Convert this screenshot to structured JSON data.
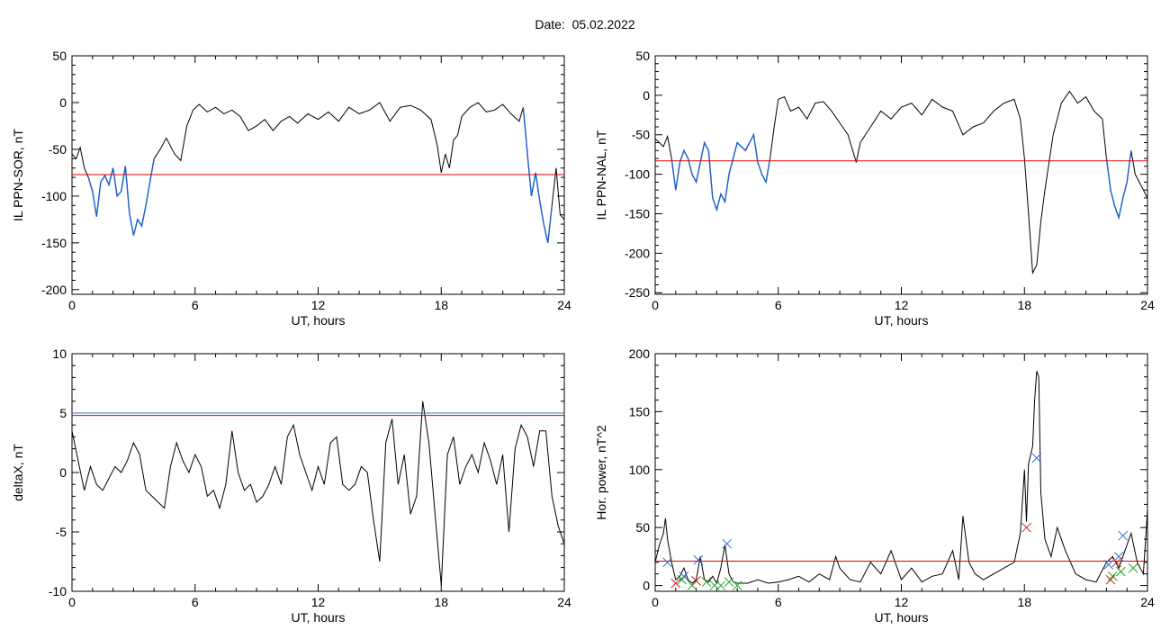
{
  "page": {
    "title": "Date:  05.02.2022"
  },
  "colors": {
    "trace": "#000000",
    "threshold": "#e00000",
    "highlight": "#1a5fcf",
    "blue_line": "#3b6fd8",
    "marker_blue": "#2f6fcf",
    "marker_red": "#e02020",
    "marker_green": "#20a020"
  },
  "chart_data": [
    {
      "id": "sor",
      "type": "line",
      "xlabel": "UT, hours",
      "ylabel": "IL PPN-SOR, nT",
      "xlim": [
        0,
        24
      ],
      "ylim": [
        -205,
        50
      ],
      "xticks": [
        "0",
        "6",
        "12",
        "18",
        "24"
      ],
      "yticks": [
        "50",
        "0",
        "-50",
        "-100",
        "-150",
        "-200"
      ],
      "threshold": -77,
      "series": [
        {
          "x": [
            0,
            0.2,
            0.4,
            0.6,
            0.8,
            1.0,
            1.2,
            1.4,
            1.6,
            1.8,
            2.0,
            2.2,
            2.4,
            2.6,
            2.8,
            3.0,
            3.2,
            3.4,
            3.6,
            3.8,
            4.0,
            4.3,
            4.6,
            5.0,
            5.3,
            5.6,
            5.9,
            6.2,
            6.6,
            7.0,
            7.4,
            7.8,
            8.2,
            8.6,
            9.0,
            9.4,
            9.8,
            10.2,
            10.6,
            11.0,
            11.5,
            12.0,
            12.5,
            13.0,
            13.5,
            14.0,
            14.5,
            15.0,
            15.5,
            16.0,
            16.5,
            17.0,
            17.5,
            17.8,
            18.0,
            18.2,
            18.4,
            18.6,
            18.8,
            19.0,
            19.4,
            19.8,
            20.2,
            20.6,
            21.0,
            21.4,
            21.8,
            22.0,
            22.2,
            22.4,
            22.6,
            22.8,
            23.0,
            23.2,
            23.4,
            23.6,
            23.8,
            24.0
          ],
          "y": [
            -55,
            -60,
            -48,
            -70,
            -80,
            -95,
            -122,
            -85,
            -78,
            -88,
            -70,
            -100,
            -95,
            -68,
            -118,
            -142,
            -125,
            -132,
            -110,
            -85,
            -60,
            -50,
            -38,
            -55,
            -62,
            -25,
            -8,
            -2,
            -10,
            -5,
            -12,
            -8,
            -15,
            -30,
            -25,
            -18,
            -30,
            -20,
            -15,
            -22,
            -12,
            -18,
            -10,
            -20,
            -5,
            -12,
            -8,
            0,
            -20,
            -5,
            -3,
            -8,
            -18,
            -45,
            -75,
            -55,
            -70,
            -40,
            -35,
            -15,
            -5,
            0,
            -10,
            -8,
            -2,
            -12,
            -20,
            -5,
            -55,
            -100,
            -75,
            -105,
            -130,
            -150,
            -110,
            -70,
            -120,
            -125
          ]
        }
      ],
      "highlight_ranges": [
        [
          0.8,
          4.0
        ],
        [
          21.9,
          23.4
        ]
      ]
    },
    {
      "id": "nal",
      "type": "line",
      "xlabel": "UT, hours",
      "ylabel": "IL PPN-NAL, nT",
      "xlim": [
        0,
        24
      ],
      "ylim": [
        -252,
        50
      ],
      "xticks": [
        "0",
        "6",
        "12",
        "18",
        "24"
      ],
      "yticks": [
        "50",
        "0",
        "-50",
        "-100",
        "-150",
        "-200",
        "-250"
      ],
      "threshold": -83,
      "series": [
        {
          "x": [
            0,
            0.2,
            0.4,
            0.6,
            0.8,
            1.0,
            1.2,
            1.4,
            1.6,
            1.8,
            2.0,
            2.2,
            2.4,
            2.6,
            2.8,
            3.0,
            3.2,
            3.4,
            3.6,
            3.8,
            4.0,
            4.4,
            4.8,
            5.0,
            5.2,
            5.4,
            5.6,
            5.8,
            6.0,
            6.3,
            6.6,
            7.0,
            7.4,
            7.8,
            8.2,
            8.6,
            9.0,
            9.4,
            9.8,
            10.0,
            10.5,
            11.0,
            11.5,
            12.0,
            12.5,
            13.0,
            13.5,
            14.0,
            14.5,
            15.0,
            15.5,
            16.0,
            16.5,
            17.0,
            17.5,
            17.8,
            18.0,
            18.2,
            18.4,
            18.6,
            18.8,
            19.0,
            19.4,
            19.8,
            20.2,
            20.6,
            21.0,
            21.4,
            21.8,
            22.0,
            22.2,
            22.4,
            22.6,
            22.8,
            23.0,
            23.2,
            23.4,
            23.6,
            23.8,
            24.0
          ],
          "y": [
            -55,
            -60,
            -65,
            -52,
            -80,
            -120,
            -85,
            -70,
            -80,
            -100,
            -110,
            -85,
            -60,
            -70,
            -130,
            -145,
            -125,
            -135,
            -100,
            -80,
            -60,
            -70,
            -50,
            -85,
            -100,
            -110,
            -80,
            -40,
            -5,
            -2,
            -20,
            -15,
            -30,
            -10,
            -8,
            -20,
            -35,
            -50,
            -85,
            -60,
            -40,
            -20,
            -30,
            -15,
            -10,
            -25,
            -5,
            -15,
            -20,
            -50,
            -40,
            -35,
            -20,
            -10,
            -5,
            -30,
            -80,
            -150,
            -225,
            -215,
            -160,
            -120,
            -50,
            -10,
            5,
            -10,
            -2,
            -20,
            -30,
            -80,
            -120,
            -140,
            -155,
            -130,
            -110,
            -70,
            -100,
            -110,
            -120,
            -130
          ]
        }
      ],
      "highlight_ranges": [
        [
          0.8,
          5.6
        ],
        [
          21.9,
          23.2
        ]
      ]
    },
    {
      "id": "deltax",
      "type": "line",
      "xlabel": "UT, hours",
      "ylabel": "deltaX, nT",
      "xlim": [
        0,
        24
      ],
      "ylim": [
        -10,
        10
      ],
      "xticks": [
        "0",
        "6",
        "12",
        "18",
        "24"
      ],
      "yticks": [
        "10",
        "5",
        "0",
        "-5",
        "-10"
      ],
      "threshold": 4.8,
      "threshold_blue": 5.0,
      "series": [
        {
          "x": [
            0,
            0.3,
            0.6,
            0.9,
            1.2,
            1.5,
            1.8,
            2.1,
            2.4,
            2.7,
            3.0,
            3.3,
            3.6,
            3.9,
            4.2,
            4.5,
            4.8,
            5.1,
            5.4,
            5.7,
            6.0,
            6.3,
            6.6,
            6.9,
            7.2,
            7.5,
            7.8,
            8.1,
            8.4,
            8.7,
            9.0,
            9.3,
            9.6,
            9.9,
            10.2,
            10.5,
            10.8,
            11.1,
            11.4,
            11.7,
            12.0,
            12.3,
            12.6,
            12.9,
            13.2,
            13.5,
            13.8,
            14.1,
            14.4,
            14.7,
            15.0,
            15.3,
            15.6,
            15.9,
            16.2,
            16.5,
            16.8,
            17.1,
            17.4,
            17.7,
            18.0,
            18.3,
            18.6,
            18.9,
            19.2,
            19.5,
            19.8,
            20.1,
            20.4,
            20.7,
            21.0,
            21.3,
            21.6,
            21.9,
            22.2,
            22.5,
            22.8,
            23.1,
            23.4,
            23.7,
            24.0
          ],
          "y": [
            3.5,
            1.0,
            -1.5,
            0.5,
            -1.0,
            -1.5,
            -0.5,
            0.5,
            0.0,
            1.0,
            2.5,
            1.5,
            -1.5,
            -2.0,
            -2.5,
            -3.0,
            0.5,
            2.5,
            1.0,
            0.0,
            1.5,
            0.5,
            -2.0,
            -1.5,
            -3.0,
            -1.0,
            3.5,
            0.0,
            -1.5,
            -1.0,
            -2.5,
            -2.0,
            -1.0,
            0.5,
            -1.0,
            3.0,
            4.0,
            1.5,
            0.0,
            -1.5,
            0.5,
            -1.0,
            2.5,
            3.0,
            -1.0,
            -1.5,
            -1.0,
            0.5,
            0.0,
            -4.0,
            -7.5,
            2.5,
            4.5,
            -1.0,
            1.5,
            -3.5,
            -2.0,
            6.0,
            2.5,
            -3.5,
            -9.5,
            1.5,
            3.0,
            -1.0,
            0.5,
            1.5,
            0.0,
            2.5,
            1.0,
            -1.0,
            1.5,
            -5.0,
            2.0,
            4.0,
            3.0,
            0.5,
            3.5,
            3.5,
            -2.0,
            -4.5,
            -6.0
          ]
        }
      ]
    },
    {
      "id": "power",
      "type": "line",
      "xlabel": "UT, hours",
      "ylabel": "Hor. power, nT^2",
      "xlim": [
        0,
        24
      ],
      "ylim": [
        -5,
        200
      ],
      "xticks": [
        "0",
        "6",
        "12",
        "18",
        "24"
      ],
      "yticks": [
        "200",
        "150",
        "100",
        "50",
        "0"
      ],
      "threshold": 21,
      "series": [
        {
          "x": [
            0,
            0.2,
            0.4,
            0.5,
            0.6,
            0.8,
            1.0,
            1.2,
            1.4,
            1.6,
            1.8,
            2.0,
            2.2,
            2.4,
            2.6,
            2.8,
            3.0,
            3.2,
            3.4,
            3.6,
            3.8,
            4.0,
            4.5,
            5.0,
            5.5,
            6.0,
            6.5,
            7.0,
            7.5,
            8.0,
            8.5,
            8.8,
            9.0,
            9.5,
            10.0,
            10.5,
            11.0,
            11.5,
            12.0,
            12.5,
            13.0,
            13.5,
            14.0,
            14.5,
            14.8,
            15.0,
            15.3,
            15.6,
            16.0,
            16.5,
            17.0,
            17.5,
            17.8,
            18.0,
            18.1,
            18.2,
            18.4,
            18.5,
            18.6,
            18.7,
            18.8,
            19.0,
            19.3,
            19.6,
            20.0,
            20.5,
            21.0,
            21.5,
            22.0,
            22.3,
            22.6,
            22.9,
            23.2,
            23.5,
            23.8,
            24.0
          ],
          "y": [
            20,
            35,
            45,
            58,
            40,
            20,
            5,
            8,
            15,
            5,
            2,
            5,
            25,
            5,
            3,
            8,
            2,
            15,
            35,
            10,
            3,
            2,
            2,
            5,
            2,
            3,
            5,
            8,
            3,
            10,
            5,
            25,
            15,
            5,
            3,
            20,
            10,
            30,
            5,
            15,
            3,
            8,
            10,
            30,
            5,
            60,
            20,
            10,
            5,
            10,
            15,
            20,
            45,
            100,
            55,
            105,
            120,
            160,
            185,
            180,
            80,
            40,
            25,
            50,
            30,
            10,
            5,
            3,
            20,
            25,
            15,
            30,
            45,
            20,
            10,
            65
          ]
        }
      ],
      "markers": {
        "blue": [
          [
            0.6,
            20
          ],
          [
            1.4,
            8
          ],
          [
            2.1,
            22
          ],
          [
            3.5,
            36
          ],
          [
            18.6,
            110
          ],
          [
            22.1,
            18
          ],
          [
            22.8,
            43
          ],
          [
            22.6,
            25
          ]
        ],
        "red": [
          [
            1.0,
            2
          ],
          [
            2.0,
            4
          ],
          [
            18.1,
            50
          ],
          [
            22.2,
            5
          ],
          [
            22.5,
            20
          ]
        ],
        "green": [
          [
            1.3,
            5
          ],
          [
            1.8,
            0
          ],
          [
            2.5,
            3
          ],
          [
            2.9,
            0
          ],
          [
            3.2,
            0
          ],
          [
            3.6,
            3
          ],
          [
            4.0,
            0
          ],
          [
            22.3,
            8
          ],
          [
            22.7,
            12
          ],
          [
            23.3,
            15
          ]
        ]
      }
    }
  ]
}
